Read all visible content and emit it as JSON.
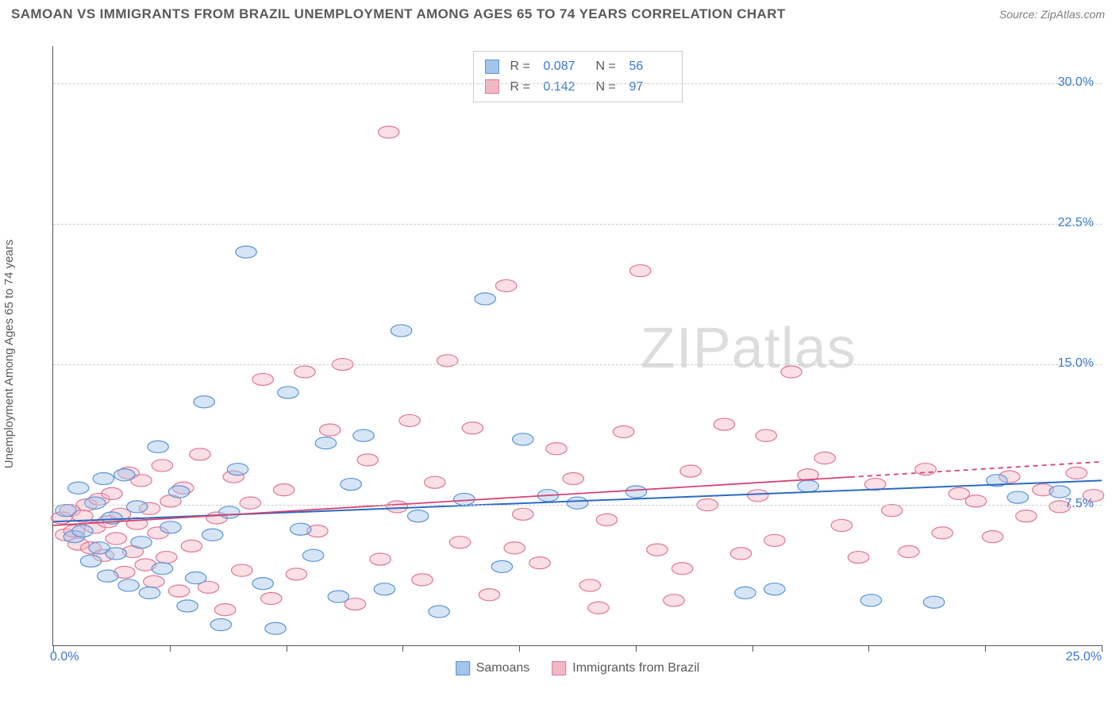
{
  "header": {
    "title": "SAMOAN VS IMMIGRANTS FROM BRAZIL UNEMPLOYMENT AMONG AGES 65 TO 74 YEARS CORRELATION CHART",
    "source": "Source: ZipAtlas.com"
  },
  "watermark": {
    "part1": "ZIP",
    "part2": "atlas"
  },
  "chart": {
    "type": "scatter",
    "background": "#ffffff",
    "grid_color": "#cccccc",
    "axis_color": "#555555",
    "xlim": [
      0,
      25
    ],
    "ylim": [
      0,
      32
    ],
    "x_ticks": [
      0,
      2.78,
      5.56,
      8.33,
      11.11,
      13.89,
      16.67,
      19.44,
      22.22,
      25
    ],
    "y_gridlines": [
      7.5,
      15.0,
      22.5,
      30.0
    ],
    "y_tick_labels": [
      "7.5%",
      "15.0%",
      "22.5%",
      "30.0%"
    ],
    "x_min_label": "0.0%",
    "x_max_label": "25.0%",
    "y_axis_title": "Unemployment Among Ages 65 to 74 years",
    "axis_label_color": "#3a7ac8",
    "axis_title_color": "#5a5a5a",
    "point_radius": 10,
    "point_opacity": 0.45,
    "series": [
      {
        "name": "Samoans",
        "color_fill": "#a3c5ec",
        "color_stroke": "#5b94d6",
        "R": "0.087",
        "N": "56",
        "trend": {
          "y_at_x0": 6.6,
          "y_at_x25": 8.8,
          "color": "#2d6bc4",
          "width": 2
        },
        "points": [
          [
            0.3,
            7.2
          ],
          [
            0.5,
            5.8
          ],
          [
            0.6,
            8.4
          ],
          [
            0.7,
            6.1
          ],
          [
            0.9,
            4.5
          ],
          [
            1.0,
            7.6
          ],
          [
            1.1,
            5.2
          ],
          [
            1.2,
            8.9
          ],
          [
            1.3,
            3.7
          ],
          [
            1.4,
            6.8
          ],
          [
            1.5,
            4.9
          ],
          [
            1.7,
            9.1
          ],
          [
            1.8,
            3.2
          ],
          [
            2.0,
            7.4
          ],
          [
            2.1,
            5.5
          ],
          [
            2.3,
            2.8
          ],
          [
            2.5,
            10.6
          ],
          [
            2.6,
            4.1
          ],
          [
            2.8,
            6.3
          ],
          [
            3.0,
            8.2
          ],
          [
            3.2,
            2.1
          ],
          [
            3.4,
            3.6
          ],
          [
            3.6,
            13.0
          ],
          [
            3.8,
            5.9
          ],
          [
            4.0,
            1.1
          ],
          [
            4.2,
            7.1
          ],
          [
            4.4,
            9.4
          ],
          [
            4.6,
            21.0
          ],
          [
            5.0,
            3.3
          ],
          [
            5.3,
            0.9
          ],
          [
            5.6,
            13.5
          ],
          [
            5.9,
            6.2
          ],
          [
            6.2,
            4.8
          ],
          [
            6.5,
            10.8
          ],
          [
            6.8,
            2.6
          ],
          [
            7.1,
            8.6
          ],
          [
            7.4,
            11.2
          ],
          [
            7.9,
            3.0
          ],
          [
            8.3,
            16.8
          ],
          [
            8.7,
            6.9
          ],
          [
            9.2,
            1.8
          ],
          [
            9.8,
            7.8
          ],
          [
            10.3,
            18.5
          ],
          [
            10.7,
            4.2
          ],
          [
            11.2,
            11.0
          ],
          [
            11.8,
            8.0
          ],
          [
            12.5,
            7.6
          ],
          [
            13.9,
            8.2
          ],
          [
            16.5,
            2.8
          ],
          [
            17.2,
            3.0
          ],
          [
            18.0,
            8.5
          ],
          [
            19.5,
            2.4
          ],
          [
            21.0,
            2.3
          ],
          [
            22.5,
            8.8
          ],
          [
            23.0,
            7.9
          ],
          [
            24.0,
            8.2
          ]
        ]
      },
      {
        "name": "Immigrants from Brazil",
        "color_fill": "#f3b8c5",
        "color_stroke": "#e07794",
        "R": "0.142",
        "N": "97",
        "trend": {
          "y_at_x0": 6.4,
          "y_at_x25": 9.8,
          "solid_until_x": 19,
          "color": "#d64570",
          "width": 1.8
        },
        "points": [
          [
            0.2,
            6.8
          ],
          [
            0.3,
            5.9
          ],
          [
            0.4,
            7.2
          ],
          [
            0.5,
            6.1
          ],
          [
            0.6,
            5.4
          ],
          [
            0.7,
            6.9
          ],
          [
            0.8,
            7.5
          ],
          [
            0.9,
            5.2
          ],
          [
            1.0,
            6.3
          ],
          [
            1.1,
            7.8
          ],
          [
            1.2,
            4.8
          ],
          [
            1.3,
            6.6
          ],
          [
            1.4,
            8.1
          ],
          [
            1.5,
            5.7
          ],
          [
            1.6,
            7.0
          ],
          [
            1.7,
            3.9
          ],
          [
            1.8,
            9.2
          ],
          [
            1.9,
            5.0
          ],
          [
            2.0,
            6.5
          ],
          [
            2.1,
            8.8
          ],
          [
            2.2,
            4.3
          ],
          [
            2.3,
            7.3
          ],
          [
            2.4,
            3.4
          ],
          [
            2.5,
            6.0
          ],
          [
            2.6,
            9.6
          ],
          [
            2.7,
            4.7
          ],
          [
            2.8,
            7.7
          ],
          [
            3.0,
            2.9
          ],
          [
            3.1,
            8.4
          ],
          [
            3.3,
            5.3
          ],
          [
            3.5,
            10.2
          ],
          [
            3.7,
            3.1
          ],
          [
            3.9,
            6.8
          ],
          [
            4.1,
            1.9
          ],
          [
            4.3,
            9.0
          ],
          [
            4.5,
            4.0
          ],
          [
            4.7,
            7.6
          ],
          [
            5.0,
            14.2
          ],
          [
            5.2,
            2.5
          ],
          [
            5.5,
            8.3
          ],
          [
            5.8,
            3.8
          ],
          [
            6.0,
            14.6
          ],
          [
            6.3,
            6.1
          ],
          [
            6.6,
            11.5
          ],
          [
            6.9,
            15.0
          ],
          [
            7.2,
            2.2
          ],
          [
            7.5,
            9.9
          ],
          [
            7.8,
            4.6
          ],
          [
            8.0,
            27.4
          ],
          [
            8.2,
            7.4
          ],
          [
            8.5,
            12.0
          ],
          [
            8.8,
            3.5
          ],
          [
            9.1,
            8.7
          ],
          [
            9.4,
            15.2
          ],
          [
            9.7,
            5.5
          ],
          [
            10.0,
            11.6
          ],
          [
            10.4,
            2.7
          ],
          [
            10.8,
            19.2
          ],
          [
            11.2,
            7.0
          ],
          [
            11.6,
            4.4
          ],
          [
            12.0,
            10.5
          ],
          [
            12.4,
            8.9
          ],
          [
            12.8,
            3.2
          ],
          [
            13.2,
            6.7
          ],
          [
            13.6,
            11.4
          ],
          [
            14.0,
            20.0
          ],
          [
            14.4,
            5.1
          ],
          [
            14.8,
            2.4
          ],
          [
            15.2,
            9.3
          ],
          [
            15.6,
            7.5
          ],
          [
            16.0,
            11.8
          ],
          [
            16.4,
            4.9
          ],
          [
            16.8,
            8.0
          ],
          [
            17.2,
            5.6
          ],
          [
            17.6,
            14.6
          ],
          [
            18.0,
            9.1
          ],
          [
            18.4,
            10.0
          ],
          [
            18.8,
            6.4
          ],
          [
            19.2,
            4.7
          ],
          [
            19.6,
            8.6
          ],
          [
            20.0,
            7.2
          ],
          [
            20.4,
            5.0
          ],
          [
            20.8,
            9.4
          ],
          [
            21.2,
            6.0
          ],
          [
            21.6,
            8.1
          ],
          [
            22.0,
            7.7
          ],
          [
            22.4,
            5.8
          ],
          [
            22.8,
            9.0
          ],
          [
            23.2,
            6.9
          ],
          [
            23.6,
            8.3
          ],
          [
            24.0,
            7.4
          ],
          [
            24.4,
            9.2
          ],
          [
            24.8,
            8.0
          ],
          [
            11.0,
            5.2
          ],
          [
            13.0,
            2.0
          ],
          [
            15.0,
            4.1
          ],
          [
            17.0,
            11.2
          ]
        ]
      }
    ]
  },
  "legend_bottom": [
    {
      "label": "Samoans",
      "fill": "#a3c5ec",
      "stroke": "#5b94d6"
    },
    {
      "label": "Immigrants from Brazil",
      "fill": "#f3b8c5",
      "stroke": "#e07794"
    }
  ]
}
